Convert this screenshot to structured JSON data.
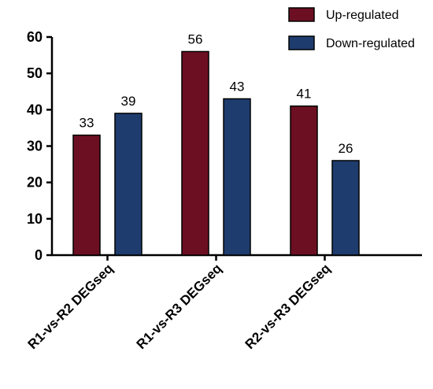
{
  "chart_data": {
    "type": "bar",
    "categories": [
      "R1-vs-R2 DEGseq",
      "R1-vs-R3 DEGseq",
      "R2-vs-R3 DEGseq"
    ],
    "series": [
      {
        "name": "Up-regulated",
        "values": [
          33,
          56,
          41
        ],
        "color": "#6d0f22"
      },
      {
        "name": "Down-regulated",
        "values": [
          39,
          43,
          26
        ],
        "color": "#1e3d6e"
      }
    ],
    "ylim": [
      0,
      60
    ],
    "yticks": [
      "0",
      "10",
      "20",
      "30",
      "40",
      "50",
      "60"
    ],
    "xlabel": "",
    "ylabel": "",
    "title": "",
    "grid": false,
    "legend_position": "top-right"
  }
}
